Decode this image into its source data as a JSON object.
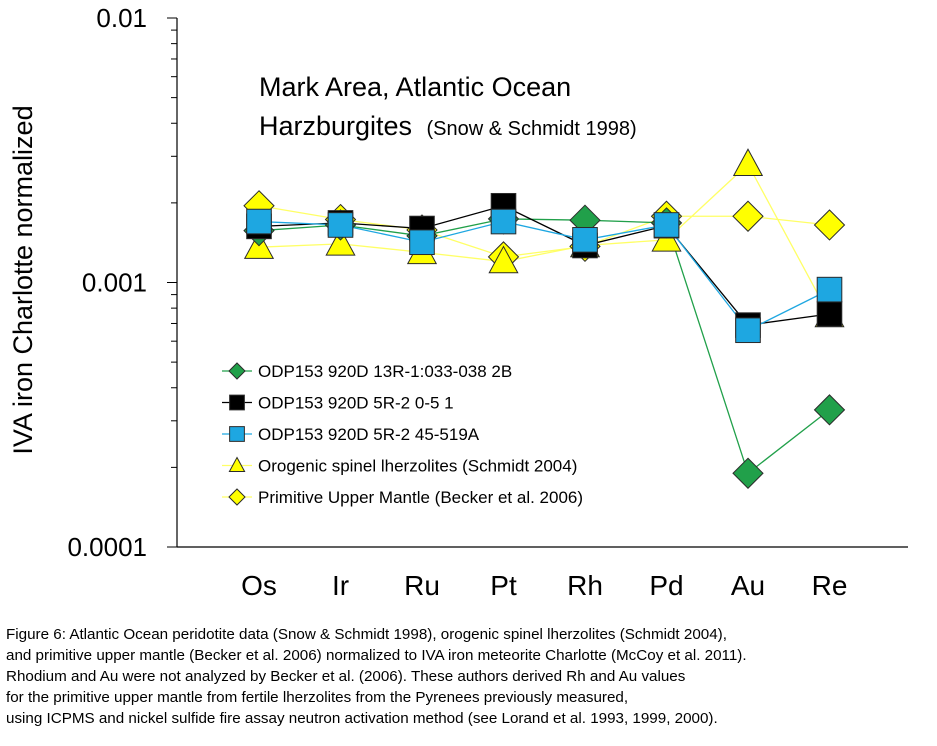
{
  "chart_data": {
    "type": "line",
    "title_line1": "Mark Area, Atlantic Ocean",
    "title_line2_main": "Harzburgites",
    "title_line2_sub": "(Snow & Schmidt 1998)",
    "ylabel": "IVA iron Charlotte normalized",
    "xlabel": "",
    "yscale": "log",
    "ylim": [
      0.0001,
      0.01
    ],
    "y_tick_labels": [
      "0.01",
      "0.001",
      "0.0001"
    ],
    "categories": [
      "Os",
      "Ir",
      "Ru",
      "Pt",
      "Rh",
      "Pd",
      "Au",
      "Re"
    ],
    "legend_position": "lower-left",
    "series": [
      {
        "name": "ODP153 920D 13R-1:033-038 2B",
        "marker": "diamond",
        "color": "#21a04a",
        "line": "#21a04a",
        "values": [
          0.00157,
          0.00165,
          0.0015,
          0.00174,
          0.00172,
          0.00168,
          0.00019,
          0.00033
        ]
      },
      {
        "name": "ODP153 920D 5R-2 0-5 1",
        "marker": "square",
        "color": "#000000",
        "line": "#000000",
        "values": [
          0.00163,
          0.00168,
          0.0016,
          0.00195,
          0.00138,
          0.00164,
          0.00069,
          0.00076
        ]
      },
      {
        "name": "ODP153 920D 5R-2 45-519A",
        "marker": "square",
        "color": "#1ea7e1",
        "line": "#1ea7e1",
        "values": [
          0.0017,
          0.00165,
          0.00142,
          0.0017,
          0.00145,
          0.00165,
          0.00066,
          0.00094
        ]
      },
      {
        "name": "Orogenic spinel lherzolites (Schmidt 2004)",
        "marker": "triangle",
        "color": "#ffff00",
        "line": "#ffff66",
        "values": [
          0.00136,
          0.0014,
          0.0013,
          0.0012,
          0.00138,
          0.00145,
          0.0028,
          0.00075
        ]
      },
      {
        "name": "Primitive Upper Mantle (Becker et al. 2006)",
        "marker": "diamond",
        "color": "#ffff00",
        "line": "#ffff66",
        "values": [
          0.00195,
          0.00173,
          0.00158,
          0.00125,
          0.00137,
          0.00178,
          0.00178,
          0.00165
        ]
      }
    ]
  },
  "caption": [
    "Figure 6: Atlantic Ocean peridotite data (Snow & Schmidt 1998), orogenic spinel lherzolites (Schmidt 2004),",
    "and primitive upper mantle (Becker et al. 2006) normalized to IVA iron meteorite Charlotte (McCoy et al. 2011).",
    "Rhodium and Au were not analyzed by Becker et al. (2006). These authors derived Rh and Au values",
    "for the primitive upper mantle from fertile lherzolites from the Pyrenees previously measured,",
    "using ICPMS and nickel sulfide fire assay neutron activation method (see Lorand et al. 1993, 1999, 2000)."
  ]
}
